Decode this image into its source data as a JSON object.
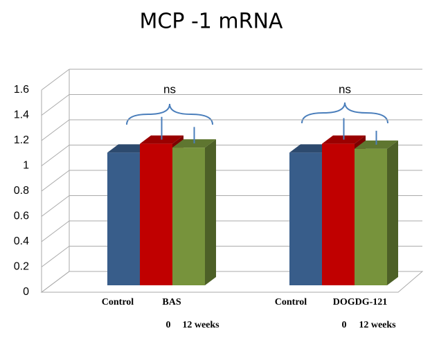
{
  "chart_data": {
    "type": "bar3d",
    "title": "MCP -1 mRNA",
    "group_labels": [
      [
        "Control",
        "BAS"
      ],
      [
        "Control",
        "DOGDG-121"
      ]
    ],
    "time_labels": [
      [
        "0",
        "12 weeks"
      ],
      [
        "0",
        "12 weeks"
      ]
    ],
    "series": [
      {
        "color": "#385d8a",
        "values": [
          1.05,
          1.05
        ]
      },
      {
        "color": "#c00000",
        "values": [
          1.12,
          1.12
        ],
        "errors": [
          0.18,
          0.17
        ]
      },
      {
        "color": "#77933c",
        "values": [
          1.09,
          1.08
        ],
        "errors": [
          0.13,
          0.11
        ]
      }
    ],
    "annotations": [
      "ns",
      "ns"
    ],
    "ylim": [
      0,
      1.6
    ],
    "yticks": [
      0,
      0.2,
      0.4,
      0.6,
      0.8,
      1,
      1.2,
      1.4,
      1.6
    ],
    "grid": true
  }
}
